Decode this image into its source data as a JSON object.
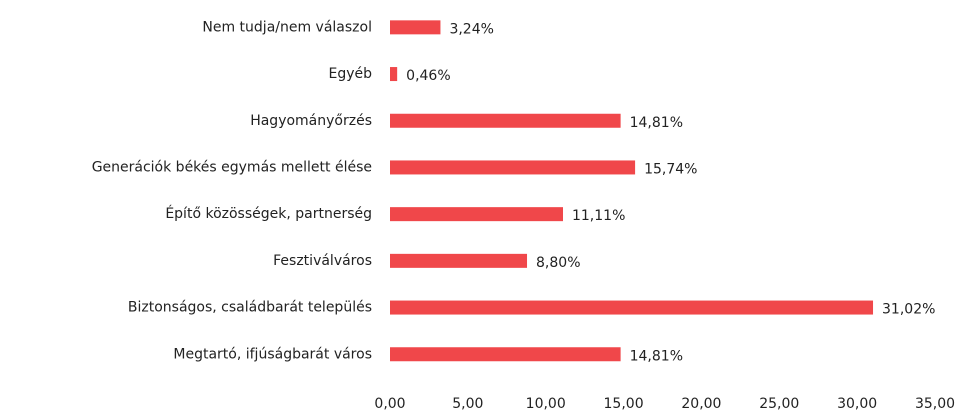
{
  "chart_data": {
    "type": "hbar",
    "categories": [
      "Nem tudja/nem válaszol",
      "Egyéb",
      "Hagyományőrzés",
      "Generációk békés egymás mellett élése",
      "Építő közösségek, partnerség",
      "Fesztiválváros",
      "Biztonságos, családbarát település",
      "Megtartó, ifjúságbarát város"
    ],
    "values": [
      3.24,
      0.46,
      14.81,
      15.74,
      11.11,
      8.8,
      31.02,
      14.81
    ],
    "value_labels": [
      "3,24%",
      "0,46%",
      "14,81%",
      "15,74%",
      "11,11%",
      "8,80%",
      "31,02%",
      "14,81%"
    ],
    "color": "#f0474a",
    "xlim": [
      0,
      35
    ],
    "xticks": [
      {
        "value": 0,
        "label": "0,00"
      },
      {
        "value": 5,
        "label": "5,00"
      },
      {
        "value": 10,
        "label": "10,00"
      },
      {
        "value": 15,
        "label": "15,00"
      },
      {
        "value": 20,
        "label": "20,00"
      },
      {
        "value": 25,
        "label": "25,00"
      },
      {
        "value": 30,
        "label": "30,00"
      },
      {
        "value": 35,
        "label": "35,00"
      }
    ]
  }
}
